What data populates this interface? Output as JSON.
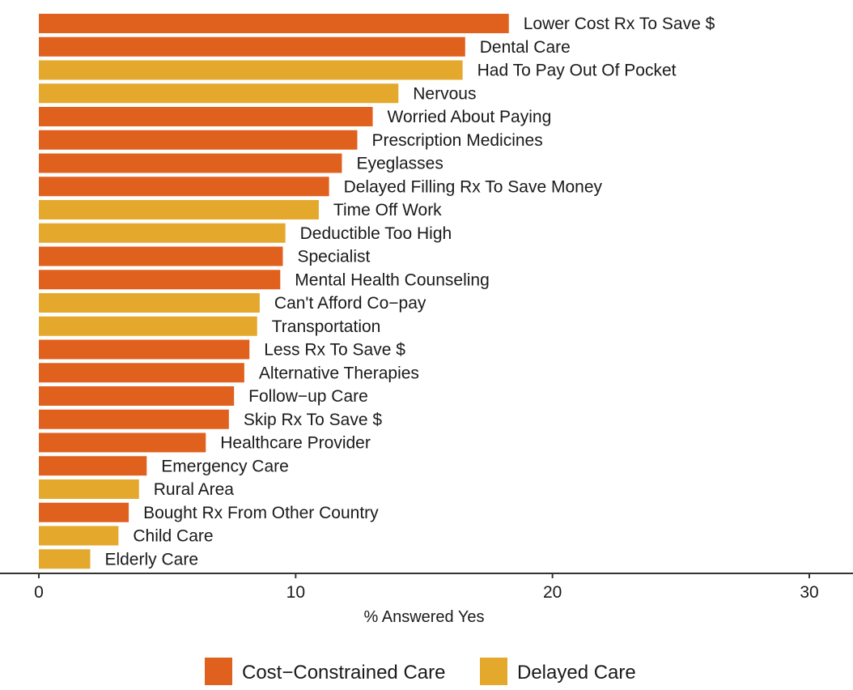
{
  "chart_data": {
    "type": "bar",
    "orientation": "horizontal",
    "xlabel": "% Answered Yes",
    "ylabel": "",
    "xlim": [
      0,
      30
    ],
    "xticks": [
      0,
      10,
      20,
      30
    ],
    "grid": false,
    "legend_position": "bottom",
    "series": [
      {
        "key": "cost",
        "name": "Cost−Constrained Care",
        "color": "#e0601e"
      },
      {
        "key": "delay",
        "name": "Delayed Care",
        "color": "#e3a82c"
      }
    ],
    "bars": [
      {
        "label": "Lower Cost Rx To Save $",
        "value": 18.3,
        "series": "cost"
      },
      {
        "label": "Dental Care",
        "value": 16.6,
        "series": "cost"
      },
      {
        "label": "Had To Pay Out Of Pocket",
        "value": 16.5,
        "series": "delay"
      },
      {
        "label": "Nervous",
        "value": 14.0,
        "series": "delay"
      },
      {
        "label": "Worried About Paying",
        "value": 13.0,
        "series": "cost"
      },
      {
        "label": "Prescription Medicines",
        "value": 12.4,
        "series": "cost"
      },
      {
        "label": "Eyeglasses",
        "value": 11.8,
        "series": "cost"
      },
      {
        "label": "Delayed Filling Rx To Save Money",
        "value": 11.3,
        "series": "cost"
      },
      {
        "label": "Time Off Work",
        "value": 10.9,
        "series": "delay"
      },
      {
        "label": "Deductible Too High",
        "value": 9.6,
        "series": "delay"
      },
      {
        "label": "Specialist",
        "value": 9.5,
        "series": "cost"
      },
      {
        "label": "Mental Health Counseling",
        "value": 9.4,
        "series": "cost"
      },
      {
        "label": "Can't Afford Co−pay",
        "value": 8.6,
        "series": "delay"
      },
      {
        "label": "Transportation",
        "value": 8.5,
        "series": "delay"
      },
      {
        "label": "Less Rx To Save $",
        "value": 8.2,
        "series": "cost"
      },
      {
        "label": "Alternative Therapies",
        "value": 8.0,
        "series": "cost"
      },
      {
        "label": "Follow−up Care",
        "value": 7.6,
        "series": "cost"
      },
      {
        "label": "Skip Rx To Save $",
        "value": 7.4,
        "series": "cost"
      },
      {
        "label": "Healthcare Provider",
        "value": 6.5,
        "series": "cost"
      },
      {
        "label": "Emergency Care",
        "value": 4.2,
        "series": "cost"
      },
      {
        "label": "Rural Area",
        "value": 3.9,
        "series": "delay"
      },
      {
        "label": "Bought Rx From Other Country",
        "value": 3.5,
        "series": "cost"
      },
      {
        "label": "Child Care",
        "value": 3.1,
        "series": "delay"
      },
      {
        "label": "Elderly Care",
        "value": 2.0,
        "series": "delay"
      }
    ]
  }
}
